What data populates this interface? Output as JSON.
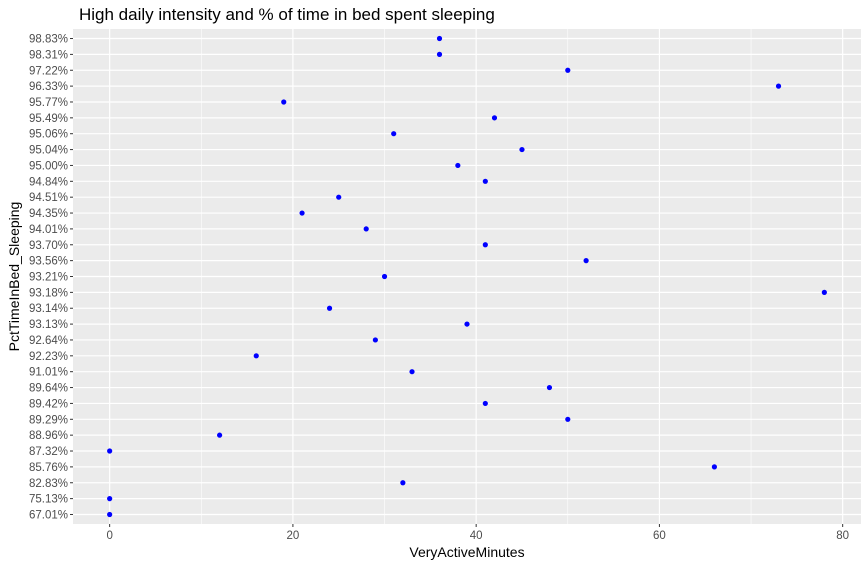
{
  "chart_data": {
    "type": "scatter",
    "title": "High daily intensity and % of time in bed spent sleeping",
    "xlabel": "VeryActiveMinutes",
    "ylabel": "PctTimeInBed_Sleeping",
    "xlim": [
      -4,
      82
    ],
    "x_ticks": [
      0,
      20,
      40,
      60,
      80
    ],
    "y_categories": [
      "67.01%",
      "75.13%",
      "82.83%",
      "85.76%",
      "87.32%",
      "88.96%",
      "89.29%",
      "89.42%",
      "89.64%",
      "91.01%",
      "92.23%",
      "92.64%",
      "93.13%",
      "93.14%",
      "93.18%",
      "93.21%",
      "93.56%",
      "93.70%",
      "94.01%",
      "94.35%",
      "94.51%",
      "94.84%",
      "95.00%",
      "95.04%",
      "95.06%",
      "95.49%",
      "95.77%",
      "96.33%",
      "97.22%",
      "98.31%",
      "98.83%"
    ],
    "points": [
      {
        "x": 0,
        "y": "67.01%"
      },
      {
        "x": 0,
        "y": "75.13%"
      },
      {
        "x": 32,
        "y": "82.83%"
      },
      {
        "x": 66,
        "y": "85.76%"
      },
      {
        "x": 0,
        "y": "87.32%"
      },
      {
        "x": 12,
        "y": "88.96%"
      },
      {
        "x": 50,
        "y": "89.29%"
      },
      {
        "x": 41,
        "y": "89.42%"
      },
      {
        "x": 48,
        "y": "89.64%"
      },
      {
        "x": 33,
        "y": "91.01%"
      },
      {
        "x": 16,
        "y": "92.23%"
      },
      {
        "x": 29,
        "y": "92.64%"
      },
      {
        "x": 39,
        "y": "93.13%"
      },
      {
        "x": 24,
        "y": "93.14%"
      },
      {
        "x": 78,
        "y": "93.18%"
      },
      {
        "x": 30,
        "y": "93.21%"
      },
      {
        "x": 52,
        "y": "93.56%"
      },
      {
        "x": 41,
        "y": "93.70%"
      },
      {
        "x": 28,
        "y": "94.01%"
      },
      {
        "x": 21,
        "y": "94.35%"
      },
      {
        "x": 25,
        "y": "94.51%"
      },
      {
        "x": 41,
        "y": "94.84%"
      },
      {
        "x": 38,
        "y": "95.00%"
      },
      {
        "x": 45,
        "y": "95.04%"
      },
      {
        "x": 31,
        "y": "95.06%"
      },
      {
        "x": 42,
        "y": "95.49%"
      },
      {
        "x": 19,
        "y": "95.77%"
      },
      {
        "x": 73,
        "y": "96.33%"
      },
      {
        "x": 50,
        "y": "97.22%"
      },
      {
        "x": 36,
        "y": "98.31%"
      },
      {
        "x": 36,
        "y": "98.83%"
      }
    ],
    "point_color": "#0000ff",
    "panel_color": "#ebebeb",
    "grid_color": "#ffffff",
    "grid": true,
    "legend": "none"
  }
}
